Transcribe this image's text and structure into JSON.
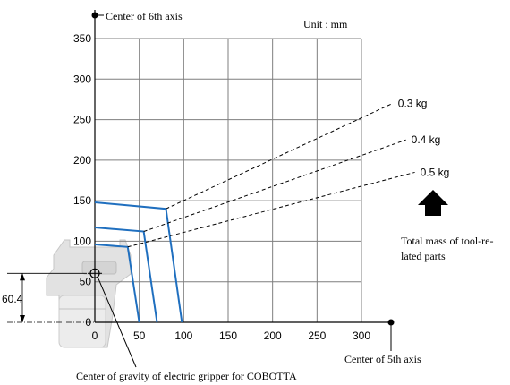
{
  "chart_data": {
    "type": "line",
    "unit_label": "Unit : mm",
    "xlim": [
      0,
      300
    ],
    "ylim": [
      0,
      350
    ],
    "x_ticks": [
      0,
      50,
      100,
      150,
      200,
      250,
      300
    ],
    "y_ticks": [
      0,
      50,
      100,
      150,
      200,
      250,
      300,
      350
    ],
    "grid": true,
    "axis_labels": {
      "y_axis_origin": "Center of 6th axis",
      "x_axis_origin": "Center of 5th axis"
    },
    "series": [
      {
        "name": "0.3 kg",
        "color": "#1f6fbf",
        "envelope": [
          [
            0,
            148
          ],
          [
            80,
            140
          ],
          [
            98,
            0
          ]
        ],
        "extension": [
          [
            80,
            140
          ],
          [
            335,
            270
          ]
        ]
      },
      {
        "name": "0.4 kg",
        "color": "#1f6fbf",
        "envelope": [
          [
            0,
            117
          ],
          [
            55,
            112
          ],
          [
            70,
            0
          ]
        ],
        "extension": [
          [
            55,
            112
          ],
          [
            350,
            225
          ]
        ]
      },
      {
        "name": "0.5 kg",
        "color": "#1f6fbf",
        "envelope": [
          [
            0,
            96
          ],
          [
            37,
            93
          ],
          [
            50,
            0
          ]
        ],
        "extension": [
          [
            37,
            93
          ],
          [
            360,
            185
          ]
        ]
      }
    ],
    "annotations": {
      "mass_note": "Total mass of tool-re-lated parts",
      "gravity_note": "Center of gravity of electric gripper for COBOTTA",
      "offset_dimension": "60.4"
    }
  },
  "colors": {
    "grid": "#7f7f7f",
    "envelope": "#1f6fbf",
    "gripper": "#dcdcdc"
  }
}
